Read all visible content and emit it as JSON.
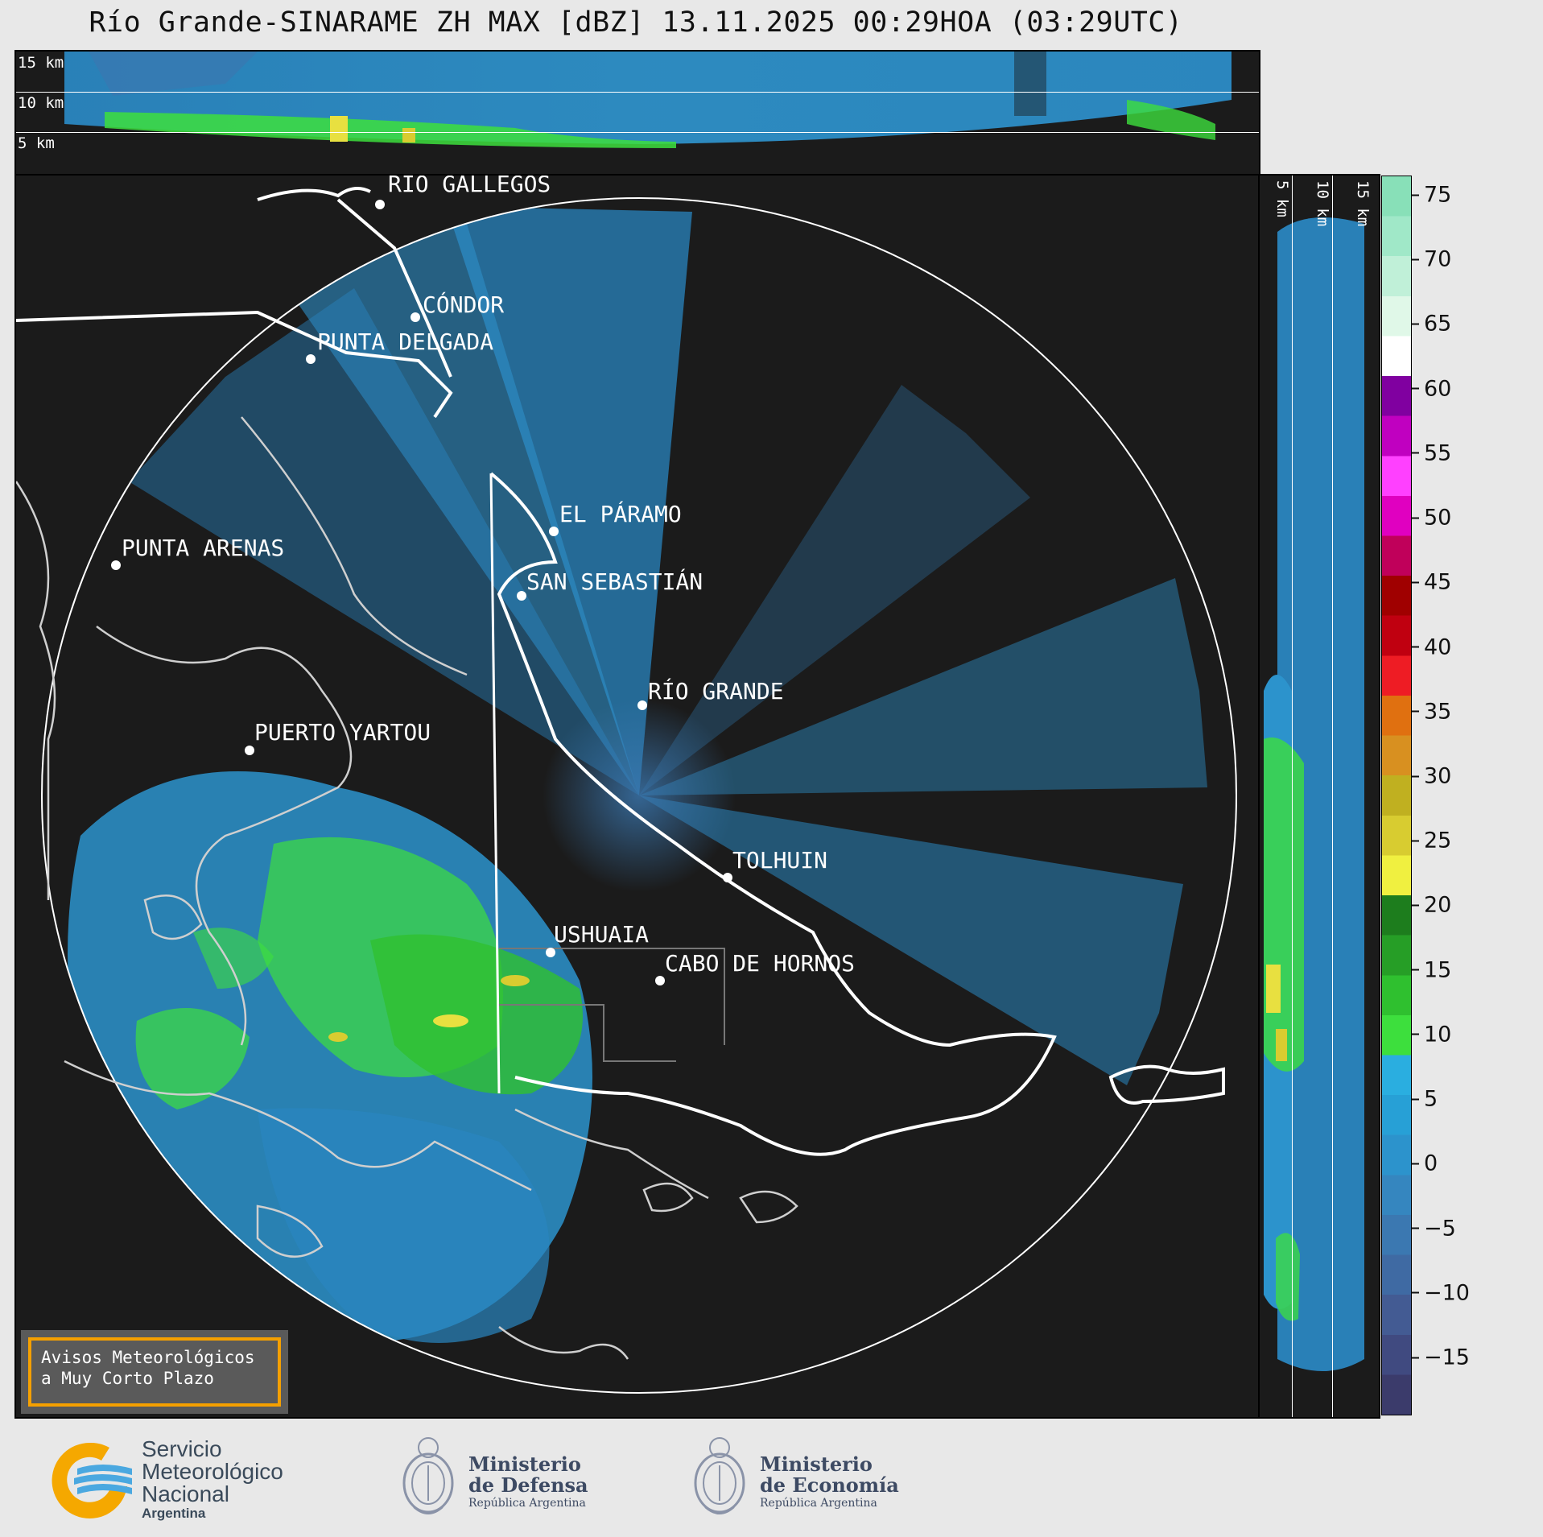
{
  "title": "Río Grande-SINARAME ZH MAX [dBZ] 13.11.2025 00:29HOA (03:29UTC)",
  "top_section": {
    "altitude_labels": [
      "15 km",
      "10 km",
      "5 km"
    ]
  },
  "right_section": {
    "altitude_labels": [
      "5 km",
      "10 km",
      "15 km"
    ]
  },
  "cities": [
    {
      "name": "RÍO GALLEGOS"
    },
    {
      "name": "CÓNDOR"
    },
    {
      "name": "PUNTA DELGADA"
    },
    {
      "name": "PUNTA ARENAS"
    },
    {
      "name": "EL PÁRAMO"
    },
    {
      "name": "SAN SEBASTIÁN"
    },
    {
      "name": "RÍO GRANDE"
    },
    {
      "name": "PUERTO YARTOU"
    },
    {
      "name": "TOLHUIN"
    },
    {
      "name": "USHUAIA"
    },
    {
      "name": "CABO DE HORNOS"
    }
  ],
  "colorbar": {
    "unit": "dBZ",
    "ticks": [
      "75",
      "70",
      "65",
      "60",
      "55",
      "50",
      "45",
      "40",
      "35",
      "30",
      "25",
      "20",
      "15",
      "10",
      "5",
      "0",
      "−5",
      "−10",
      "−15"
    ],
    "colors": [
      "#3b3b6b",
      "#404a80",
      "#435b93",
      "#3f6aa3",
      "#3b78b1",
      "#3586bf",
      "#2c93cc",
      "#27a0d6",
      "#2aaee0",
      "#3ddf3d",
      "#2fc02f",
      "#269e26",
      "#1d7d1d",
      "#f0f040",
      "#d8cc30",
      "#c0b020",
      "#d89020",
      "#e07010",
      "#ee1c24",
      "#c00010",
      "#a00000",
      "#c0005a",
      "#e000c0",
      "#ff40ff",
      "#c000c0",
      "#8000a0",
      "#ffffff",
      "#e0f8e8",
      "#c0f0d8",
      "#a0e8c8",
      "#88e0b8"
    ]
  },
  "avisos": {
    "line1": "Avisos Meteorológicos",
    "line2": "a Muy Corto Plazo"
  },
  "logos": {
    "smn": {
      "line1": "Servicio",
      "line2": "Meteorológico",
      "line3": "Nacional",
      "line4": "Argentina"
    },
    "defensa": {
      "line1": "Ministerio",
      "line2": "de Defensa",
      "line3": "República Argentina"
    },
    "economia": {
      "line1": "Ministerio",
      "line2": "de Economía",
      "line3": "República Argentina"
    }
  }
}
